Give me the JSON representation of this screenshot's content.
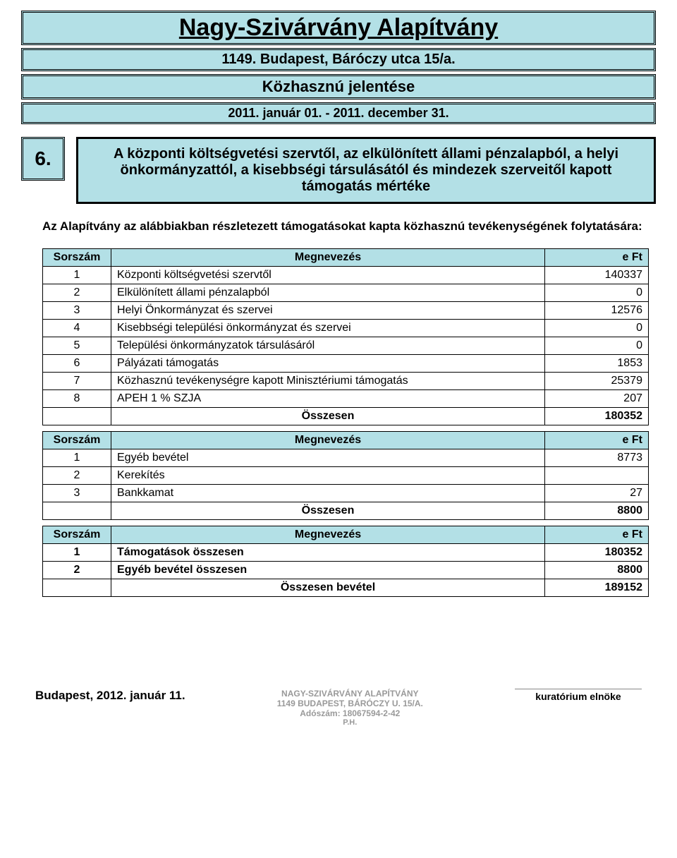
{
  "header": {
    "org": "Nagy-Szivárvány Alapítvány",
    "address": "1149. Budapest, Báróczy utca 15/a.",
    "report": "Közhasznú   jelentése",
    "period": "2011. január 01. - 2011. december 31."
  },
  "section": {
    "number": "6.",
    "title": "A központi költségvetési szervtől, az elkülönített állami pénzalapból, a helyi önkormányzattól, a kisebbségi társulásától és mindezek szerveitől kapott támogatás mértéke"
  },
  "intro": "Az Alapítvány az alábbiakban részletezett támogatásokat kapta közhasznú tevékenységének folytatására:",
  "table1": {
    "columns": [
      "Sorszám",
      "Megnevezés",
      "e Ft"
    ],
    "rows": [
      [
        "1",
        "Központi költségvetési szervtől",
        "140337"
      ],
      [
        "2",
        "Elkülönített állami pénzalapból",
        "0"
      ],
      [
        "3",
        "Helyi Önkormányzat és szervei",
        "12576"
      ],
      [
        "4",
        "Kisebbségi települési önkormányzat és szervei",
        "0"
      ],
      [
        "5",
        "Települési önkormányzatok társulásáról",
        "0"
      ],
      [
        "6",
        "Pályázati támogatás",
        "1853"
      ],
      [
        "7",
        "Közhasznú tevékenységre kapott Minisztériumi támogatás",
        "25379"
      ],
      [
        "8",
        "APEH 1 % SZJA",
        "207"
      ]
    ],
    "total_label": "Összesen",
    "total_value": "180352"
  },
  "table2": {
    "columns": [
      "Sorszám",
      "Megnevezés",
      "e Ft"
    ],
    "rows": [
      [
        "1",
        "Egyéb bevétel",
        "8773"
      ],
      [
        "2",
        "Kerekítés",
        ""
      ],
      [
        "3",
        "Bankkamat",
        "27"
      ]
    ],
    "total_label": "Összesen",
    "total_value": "8800"
  },
  "table3": {
    "columns": [
      "Sorszám",
      "Megnevezés",
      "e Ft"
    ],
    "rows": [
      [
        "1",
        "Támogatások összesen",
        "180352"
      ],
      [
        "2",
        "Egyéb bevétel összesen",
        "8800"
      ]
    ],
    "total_label": "Összesen bevétel",
    "total_value": "189152"
  },
  "footer": {
    "date": "Budapest, 2012. január 11.",
    "stamp_line1": "NAGY-SZIVÁRVÁNY ALAPÍTVÁNY",
    "stamp_line2": "1149 BUDAPEST, BÁRÓCZY U. 15/A.",
    "stamp_line3": "Adószám: 18067594-2-42",
    "stamp_ph": "P.H.",
    "signature_label": "kuratórium elnöke"
  },
  "colors": {
    "header_bg": "#b3e0e6",
    "border": "#000000"
  }
}
